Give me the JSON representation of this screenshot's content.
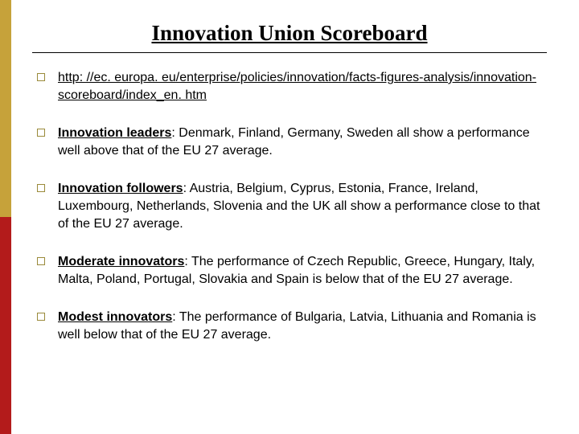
{
  "title": "Innovation Union Scoreboard",
  "accent_colors": {
    "gold": "#c6a23a",
    "red": "#b31b1b",
    "bullet_border": "#9a8a3a"
  },
  "items": [
    {
      "lead": "",
      "is_link": true,
      "text": "http: //ec. europa. eu/enterprise/policies/innovation/facts-figures-analysis/innovation-scoreboard/index_en. htm"
    },
    {
      "lead": "Innovation leaders",
      "is_link": false,
      "text": ": Denmark, Finland, Germany, Sweden all show a performance well above that of the EU 27 average."
    },
    {
      "lead": "Innovation followers",
      "is_link": false,
      "text": ": Austria, Belgium, Cyprus, Estonia, France, Ireland, Luxembourg, Netherlands, Slovenia and the UK all show a performance close to that of the EU 27 average."
    },
    {
      "lead": "Moderate innovators",
      "is_link": false,
      "text": ": The performance of Czech Republic, Greece, Hungary, Italy, Malta, Poland, Portugal, Slovakia and Spain is below that of the EU 27 average."
    },
    {
      "lead": "Modest innovators",
      "is_link": false,
      "text": ": The performance of Bulgaria, Latvia, Lithuania and Romania is well below that of the EU 27 average."
    }
  ]
}
